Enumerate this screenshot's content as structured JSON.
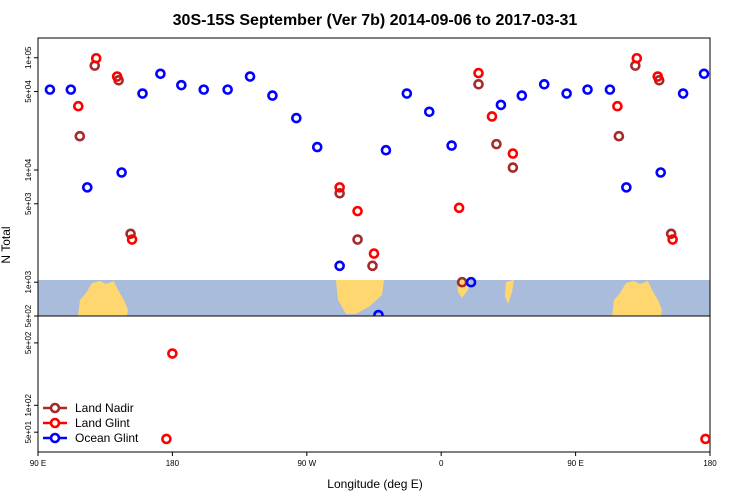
{
  "chart_data": {
    "type": "scatter",
    "title": "30S-15S September (Ver 7b)   2014-09-06 to 2017-03-31",
    "xlabel": "Longitude (deg E)",
    "ylabel": "N Total",
    "x_ticks": [
      {
        "value": 90,
        "label": "90 E"
      },
      {
        "value": 180,
        "label": "180"
      },
      {
        "value": 270,
        "label": "90 W"
      },
      {
        "value": 360,
        "label": "0"
      },
      {
        "value": 450,
        "label": "90 E"
      },
      {
        "value": 540,
        "label": "180"
      }
    ],
    "xlim": [
      90,
      540
    ],
    "y_log_scale": true,
    "upper_ylim": [
      500,
      150000
    ],
    "lower_ylim": [
      30,
      1000
    ],
    "upper_y_ticks": [
      {
        "value": 500,
        "label": "5e+02"
      },
      {
        "value": 1000,
        "label": "1e+03"
      },
      {
        "value": 5000,
        "label": "5e+03"
      },
      {
        "value": 10000,
        "label": "1e+04"
      },
      {
        "value": 50000,
        "label": "5e+04"
      },
      {
        "value": 100000,
        "label": "1e+05"
      }
    ],
    "lower_y_ticks": [
      {
        "value": 50,
        "label": "5e+01"
      },
      {
        "value": 100,
        "label": "1e+02"
      },
      {
        "value": 500,
        "label": "5e+02"
      }
    ],
    "legend": {
      "position": "bottom-left",
      "entries": [
        {
          "label": "Land Nadir",
          "color": "#a52a2a"
        },
        {
          "label": "Land Glint",
          "color": "#ff0000"
        },
        {
          "label": "Ocean Glint",
          "color": "#0000ff"
        }
      ]
    },
    "series": [
      {
        "name": "Land Nadir",
        "color": "#a52a2a",
        "panel": "upper",
        "points": [
          {
            "x": 118,
            "y": 20000
          },
          {
            "x": 128,
            "y": 85000
          },
          {
            "x": 144,
            "y": 63000
          },
          {
            "x": 152,
            "y": 2700
          },
          {
            "x": 292,
            "y": 6200
          },
          {
            "x": 304,
            "y": 2400
          },
          {
            "x": 314,
            "y": 1400
          },
          {
            "x": 374,
            "y": 1000
          },
          {
            "x": 385,
            "y": 58000
          },
          {
            "x": 397,
            "y": 17000
          },
          {
            "x": 408,
            "y": 10500
          },
          {
            "x": 479,
            "y": 20000
          },
          {
            "x": 490,
            "y": 85000
          },
          {
            "x": 506,
            "y": 63000
          },
          {
            "x": 514,
            "y": 2700
          }
        ]
      },
      {
        "name": "Land Glint",
        "color": "#ff0000",
        "panel": "upper",
        "points": [
          {
            "x": 117,
            "y": 37000
          },
          {
            "x": 129,
            "y": 99000
          },
          {
            "x": 143,
            "y": 68000
          },
          {
            "x": 153,
            "y": 2400
          },
          {
            "x": 292,
            "y": 7000
          },
          {
            "x": 304,
            "y": 4300
          },
          {
            "x": 315,
            "y": 1800
          },
          {
            "x": 372,
            "y": 4600
          },
          {
            "x": 385,
            "y": 73000
          },
          {
            "x": 394,
            "y": 30000
          },
          {
            "x": 408,
            "y": 14000
          },
          {
            "x": 478,
            "y": 37000
          },
          {
            "x": 491,
            "y": 99000
          },
          {
            "x": 505,
            "y": 68000
          },
          {
            "x": 515,
            "y": 2400
          }
        ]
      },
      {
        "name": "Land Glint",
        "color": "#ff0000",
        "panel": "lower",
        "points": [
          {
            "x": 180,
            "y": 380
          },
          {
            "x": 176,
            "y": 42
          },
          {
            "x": 537,
            "y": 42
          }
        ]
      },
      {
        "name": "Ocean Glint",
        "color": "#0000ff",
        "panel": "upper",
        "points": [
          {
            "x": 98,
            "y": 52000
          },
          {
            "x": 112,
            "y": 52000
          },
          {
            "x": 123,
            "y": 7000
          },
          {
            "x": 146,
            "y": 9500
          },
          {
            "x": 160,
            "y": 48000
          },
          {
            "x": 172,
            "y": 72000
          },
          {
            "x": 186,
            "y": 57000
          },
          {
            "x": 201,
            "y": 52000
          },
          {
            "x": 217,
            "y": 52000
          },
          {
            "x": 232,
            "y": 68000
          },
          {
            "x": 247,
            "y": 46000
          },
          {
            "x": 263,
            "y": 29000
          },
          {
            "x": 277,
            "y": 16000
          },
          {
            "x": 292,
            "y": 1400
          },
          {
            "x": 318,
            "y": 510
          },
          {
            "x": 323,
            "y": 15000
          },
          {
            "x": 337,
            "y": 48000
          },
          {
            "x": 352,
            "y": 33000
          },
          {
            "x": 367,
            "y": 16500
          },
          {
            "x": 380,
            "y": 1000
          },
          {
            "x": 400,
            "y": 38000
          },
          {
            "x": 414,
            "y": 46000
          },
          {
            "x": 429,
            "y": 58000
          },
          {
            "x": 444,
            "y": 48000
          },
          {
            "x": 458,
            "y": 52000
          },
          {
            "x": 473,
            "y": 52000
          },
          {
            "x": 484,
            "y": 7000
          },
          {
            "x": 507,
            "y": 9500
          },
          {
            "x": 522,
            "y": 48000
          },
          {
            "x": 536,
            "y": 72000
          }
        ]
      }
    ]
  }
}
